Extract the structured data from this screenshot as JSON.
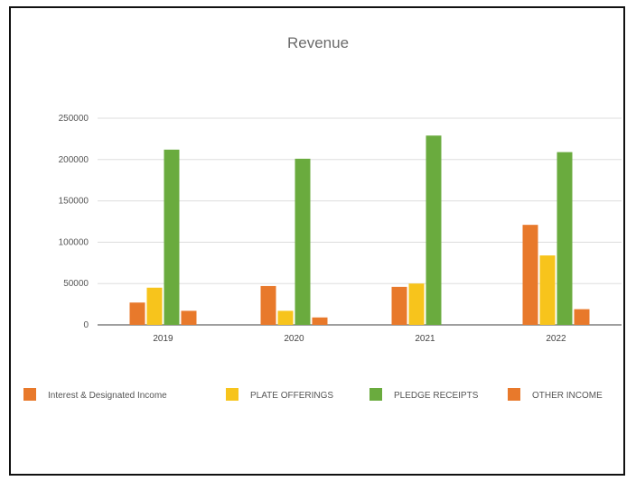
{
  "chart_data": {
    "type": "bar",
    "title": "Revenue",
    "xlabel": "",
    "ylabel": "",
    "categories": [
      "2019",
      "2020",
      "2021",
      "2022"
    ],
    "ylim": [
      0,
      250000
    ],
    "yticks": [
      0,
      50000,
      100000,
      150000,
      200000,
      250000
    ],
    "ytick_labels": [
      "0",
      "50000",
      "100000",
      "150000",
      "200000",
      "250000"
    ],
    "grid": true,
    "legend_position": "bottom",
    "series": [
      {
        "name": "Interest & Designated Income",
        "color": "#e8792b",
        "values": [
          27000,
          47000,
          46000,
          121000
        ]
      },
      {
        "name": "PLATE OFFERINGS",
        "color": "#f7c41c",
        "values": [
          45000,
          17000,
          50000,
          84000
        ]
      },
      {
        "name": "PLEDGE RECEIPTS",
        "color": "#6aab3e",
        "values": [
          212000,
          201000,
          229000,
          209000
        ]
      },
      {
        "name": "OTHER INCOME",
        "color": "#e8792b",
        "values": [
          17000,
          9000,
          0,
          19000
        ]
      }
    ]
  }
}
